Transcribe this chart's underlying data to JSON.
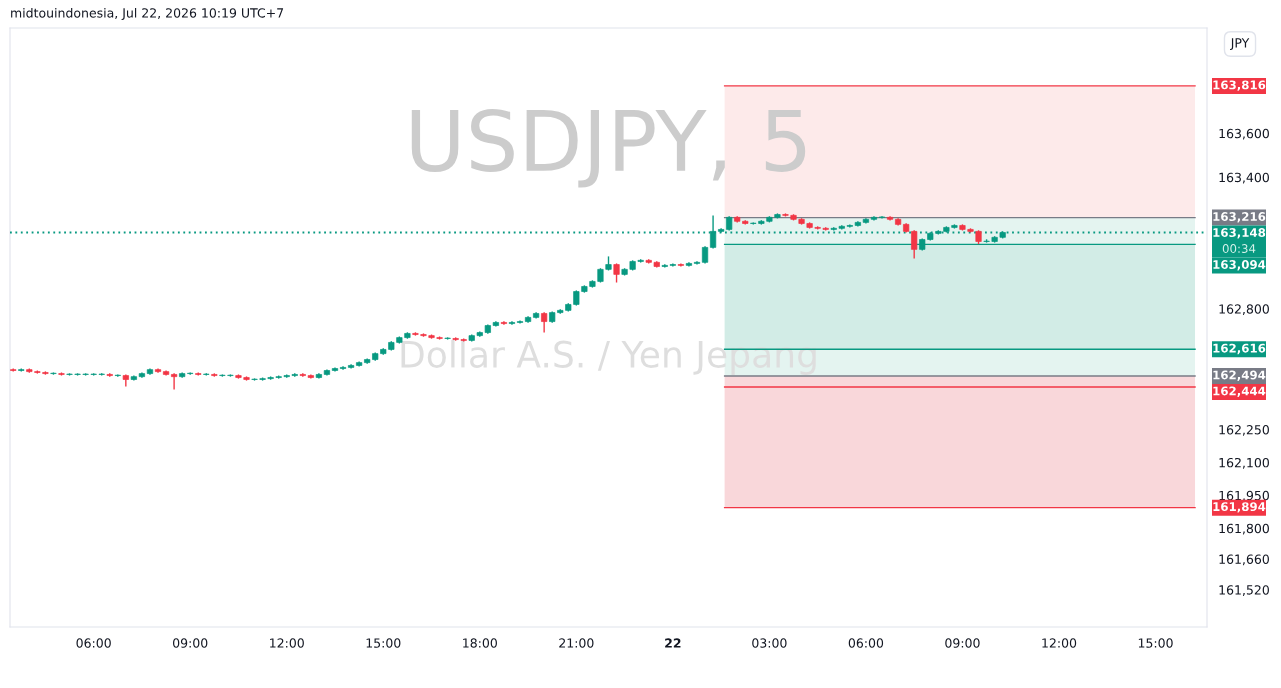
{
  "chart_data": {
    "type": "candlestick",
    "title": "USDJPY, 5",
    "subtitle": "Dollar A.S. / Yen Jepang",
    "annotations": [
      "midtouindonesia, Jul 22, 2026 10:19 UTC+7",
      "JPY",
      "00:34"
    ],
    "x": [
      "2026-07-21T03:30",
      "2026-07-21T03:45",
      "2026-07-21T04:00",
      "2026-07-21T04:15",
      "2026-07-21T04:30",
      "2026-07-21T04:45",
      "2026-07-21T05:00",
      "2026-07-21T05:15",
      "2026-07-21T05:30",
      "2026-07-21T05:45",
      "2026-07-21T06:00",
      "2026-07-21T06:15",
      "2026-07-21T06:30",
      "2026-07-21T06:45",
      "2026-07-21T07:00",
      "2026-07-21T07:15",
      "2026-07-21T07:30",
      "2026-07-21T07:45",
      "2026-07-21T08:00",
      "2026-07-21T08:15",
      "2026-07-21T08:30",
      "2026-07-21T08:45",
      "2026-07-21T09:00",
      "2026-07-21T09:15",
      "2026-07-21T09:30",
      "2026-07-21T09:45",
      "2026-07-21T10:00",
      "2026-07-21T10:15",
      "2026-07-21T10:30",
      "2026-07-21T10:45",
      "2026-07-21T11:00",
      "2026-07-21T11:15",
      "2026-07-21T11:30",
      "2026-07-21T11:45",
      "2026-07-21T12:00",
      "2026-07-21T12:15",
      "2026-07-21T12:30",
      "2026-07-21T12:45",
      "2026-07-21T13:00",
      "2026-07-21T13:15",
      "2026-07-21T13:30",
      "2026-07-21T13:45",
      "2026-07-21T14:00",
      "2026-07-21T14:15",
      "2026-07-21T14:30",
      "2026-07-21T14:45",
      "2026-07-21T15:00",
      "2026-07-21T15:15",
      "2026-07-21T15:30",
      "2026-07-21T15:45",
      "2026-07-21T16:00",
      "2026-07-21T16:15",
      "2026-07-21T16:30",
      "2026-07-21T16:45",
      "2026-07-21T17:00",
      "2026-07-21T17:15",
      "2026-07-21T17:30",
      "2026-07-21T17:45",
      "2026-07-21T18:00",
      "2026-07-21T18:15",
      "2026-07-21T18:30",
      "2026-07-21T18:45",
      "2026-07-21T19:00",
      "2026-07-21T19:15",
      "2026-07-21T19:30",
      "2026-07-21T19:45",
      "2026-07-21T20:00",
      "2026-07-21T20:15",
      "2026-07-21T20:30",
      "2026-07-21T20:45",
      "2026-07-21T21:00",
      "2026-07-21T21:15",
      "2026-07-21T21:30",
      "2026-07-21T21:45",
      "2026-07-21T22:00",
      "2026-07-21T22:15",
      "2026-07-21T22:30",
      "2026-07-21T22:45",
      "2026-07-21T23:00",
      "2026-07-21T23:15",
      "2026-07-21T23:30",
      "2026-07-21T23:45",
      "2026-07-22T00:00",
      "2026-07-22T00:15",
      "2026-07-22T00:30",
      "2026-07-22T00:45",
      "2026-07-22T01:00",
      "2026-07-22T01:15",
      "2026-07-22T01:30",
      "2026-07-22T01:45",
      "2026-07-22T02:00",
      "2026-07-22T02:15",
      "2026-07-22T02:30",
      "2026-07-22T02:45",
      "2026-07-22T03:00",
      "2026-07-22T03:15",
      "2026-07-22T03:30",
      "2026-07-22T03:45",
      "2026-07-22T04:00",
      "2026-07-22T04:15",
      "2026-07-22T04:30",
      "2026-07-22T04:45",
      "2026-07-22T05:00",
      "2026-07-22T05:15",
      "2026-07-22T05:30",
      "2026-07-22T05:45",
      "2026-07-22T06:00",
      "2026-07-22T06:15",
      "2026-07-22T06:30",
      "2026-07-22T06:45",
      "2026-07-22T07:00",
      "2026-07-22T07:15",
      "2026-07-22T07:30",
      "2026-07-22T07:45",
      "2026-07-22T08:00",
      "2026-07-22T08:15",
      "2026-07-22T08:30",
      "2026-07-22T08:45",
      "2026-07-22T09:00",
      "2026-07-22T09:15",
      "2026-07-22T09:30",
      "2026-07-22T09:45",
      "2026-07-22T10:00",
      "2026-07-22T10:15"
    ],
    "ohlc": [
      [
        162523,
        162528,
        162514,
        162519
      ],
      [
        162519,
        162528,
        162514,
        162523
      ],
      [
        162523,
        162528,
        162509,
        162514
      ],
      [
        162514,
        162519,
        162505,
        162510
      ],
      [
        162510,
        162515,
        162500,
        162505
      ],
      [
        162505,
        162510,
        162500,
        162505
      ],
      [
        162505,
        162510,
        162496,
        162501
      ],
      [
        162501,
        162506,
        162496,
        162501
      ],
      [
        162501,
        162506,
        162496,
        162501
      ],
      [
        162501,
        162506,
        162496,
        162501
      ],
      [
        162501,
        162506,
        162496,
        162501
      ],
      [
        162501,
        162506,
        162496,
        162501
      ],
      [
        162501,
        162506,
        162491,
        162496
      ],
      [
        162496,
        162501,
        162491,
        162496
      ],
      [
        162496,
        162501,
        162446,
        162478
      ],
      [
        162478,
        162496,
        162473,
        162491
      ],
      [
        162491,
        162510,
        162486,
        162505
      ],
      [
        162505,
        162528,
        162500,
        162523
      ],
      [
        162523,
        162528,
        162509,
        162514
      ],
      [
        162514,
        162519,
        162496,
        162501
      ],
      [
        162501,
        162506,
        162432,
        162491
      ],
      [
        162491,
        162510,
        162486,
        162505
      ],
      [
        162505,
        162510,
        162500,
        162505
      ],
      [
        162505,
        162510,
        162496,
        162501
      ],
      [
        162501,
        162506,
        162496,
        162501
      ],
      [
        162501,
        162506,
        162491,
        162496
      ],
      [
        162496,
        162501,
        162491,
        162496
      ],
      [
        162496,
        162501,
        162491,
        162496
      ],
      [
        162496,
        162501,
        162482,
        162487
      ],
      [
        162487,
        162492,
        162473,
        162478
      ],
      [
        162478,
        162483,
        162473,
        162478
      ],
      [
        162478,
        162487,
        162473,
        162482
      ],
      [
        162482,
        162492,
        162477,
        162487
      ],
      [
        162487,
        162496,
        162482,
        162491
      ],
      [
        162491,
        162501,
        162486,
        162496
      ],
      [
        162496,
        162506,
        162491,
        162501
      ],
      [
        162501,
        162506,
        162491,
        162496
      ],
      [
        162496,
        162501,
        162482,
        162487
      ],
      [
        162487,
        162506,
        162482,
        162501
      ],
      [
        162501,
        162524,
        162496,
        162519
      ],
      [
        162519,
        162533,
        162514,
        162528
      ],
      [
        162528,
        162538,
        162523,
        162533
      ],
      [
        162533,
        162547,
        162528,
        162542
      ],
      [
        162542,
        162560,
        162537,
        162555
      ],
      [
        162555,
        162574,
        162550,
        162569
      ],
      [
        162569,
        162601,
        162564,
        162596
      ],
      [
        162596,
        162620,
        162591,
        162615
      ],
      [
        162615,
        162652,
        162610,
        162647
      ],
      [
        162647,
        162674,
        162642,
        162669
      ],
      [
        162669,
        162693,
        162664,
        162688
      ],
      [
        162688,
        162693,
        162678,
        162683
      ],
      [
        162683,
        162688,
        162673,
        162678
      ],
      [
        162678,
        162683,
        162664,
        162669
      ],
      [
        162669,
        162674,
        162660,
        162665
      ],
      [
        162665,
        162670,
        162660,
        162665
      ],
      [
        162665,
        162670,
        162655,
        162660
      ],
      [
        162660,
        162665,
        162651,
        162656
      ],
      [
        162656,
        162683,
        162651,
        162678
      ],
      [
        162678,
        162697,
        162673,
        162692
      ],
      [
        162692,
        162729,
        162687,
        162724
      ],
      [
        162724,
        162743,
        162719,
        162738
      ],
      [
        162738,
        162743,
        162728,
        162733
      ],
      [
        162733,
        162743,
        162728,
        162738
      ],
      [
        162738,
        162747,
        162733,
        162742
      ],
      [
        162742,
        162766,
        162737,
        162761
      ],
      [
        162761,
        162784,
        162756,
        162779
      ],
      [
        162779,
        162784,
        162692,
        162742
      ],
      [
        162742,
        162788,
        162737,
        162783
      ],
      [
        162783,
        162798,
        162778,
        162793
      ],
      [
        162793,
        162825,
        162788,
        162820
      ],
      [
        162820,
        162884,
        162815,
        162879
      ],
      [
        162879,
        162907,
        162874,
        162902
      ],
      [
        162902,
        162930,
        162897,
        162925
      ],
      [
        162925,
        162985,
        162920,
        162980
      ],
      [
        162980,
        163039,
        162975,
        163002
      ],
      [
        163002,
        163007,
        162920,
        162957
      ],
      [
        162957,
        162985,
        162952,
        162980
      ],
      [
        162980,
        163021,
        162975,
        163016
      ],
      [
        163016,
        163026,
        163011,
        163021
      ],
      [
        163021,
        163026,
        163007,
        163012
      ],
      [
        163012,
        163017,
        162988,
        162993
      ],
      [
        162993,
        163003,
        162988,
        162998
      ],
      [
        162998,
        163007,
        162993,
        163002
      ],
      [
        163002,
        163007,
        162993,
        162998
      ],
      [
        162998,
        163012,
        162993,
        163007
      ],
      [
        163007,
        163017,
        163002,
        163012
      ],
      [
        163012,
        163085,
        163007,
        163080
      ],
      [
        163080,
        163226,
        163075,
        163153
      ],
      [
        163153,
        163167,
        163148,
        163162
      ],
      [
        163162,
        163222,
        163157,
        163217
      ],
      [
        163217,
        163222,
        163194,
        163199
      ],
      [
        163199,
        163204,
        163184,
        163189
      ],
      [
        163189,
        163194,
        163184,
        163189
      ],
      [
        163189,
        163204,
        163184,
        163199
      ],
      [
        163199,
        163222,
        163194,
        163217
      ],
      [
        163217,
        163235,
        163212,
        163230
      ],
      [
        163230,
        163235,
        163221,
        163226
      ],
      [
        163226,
        163231,
        163203,
        163208
      ],
      [
        163208,
        163213,
        163184,
        163189
      ],
      [
        163189,
        163194,
        163166,
        163171
      ],
      [
        163171,
        163176,
        163162,
        163167
      ],
      [
        163167,
        163172,
        163157,
        163162
      ],
      [
        163162,
        163172,
        163157,
        163167
      ],
      [
        163167,
        163181,
        163162,
        163176
      ],
      [
        163176,
        163185,
        163171,
        163180
      ],
      [
        163180,
        163199,
        163175,
        163194
      ],
      [
        163194,
        163213,
        163189,
        163208
      ],
      [
        163208,
        163222,
        163203,
        163217
      ],
      [
        163217,
        163222,
        163212,
        163217
      ],
      [
        163217,
        163222,
        163203,
        163208
      ],
      [
        163208,
        163213,
        163180,
        163185
      ],
      [
        163185,
        163190,
        163148,
        163153
      ],
      [
        163153,
        163158,
        163030,
        163071
      ],
      [
        163071,
        163121,
        163066,
        163116
      ],
      [
        163116,
        163149,
        163111,
        163144
      ],
      [
        163144,
        163158,
        163139,
        163153
      ],
      [
        163153,
        163176,
        163148,
        163171
      ],
      [
        163171,
        163185,
        163166,
        163180
      ],
      [
        163180,
        163185,
        163157,
        163162
      ],
      [
        163162,
        163167,
        163148,
        163153
      ],
      [
        163153,
        163158,
        163095,
        163107
      ],
      [
        163107,
        163117,
        163102,
        163107
      ],
      [
        163107,
        163131,
        163102,
        163126
      ],
      [
        163126,
        163153,
        163121,
        163148
      ]
    ],
    "colors": [
      "#f23645",
      "#089981",
      "#f23645",
      "#f23645",
      "#f23645",
      "#089981",
      "#f23645",
      "#089981",
      "#089981",
      "#089981",
      "#089981",
      "#089981",
      "#f23645",
      "#089981",
      "#f23645",
      "#089981",
      "#089981",
      "#089981",
      "#f23645",
      "#f23645",
      "#f23645",
      "#089981",
      "#089981",
      "#f23645",
      "#089981",
      "#f23645",
      "#089981",
      "#089981",
      "#f23645",
      "#f23645",
      "#089981",
      "#089981",
      "#089981",
      "#089981",
      "#089981",
      "#089981",
      "#f23645",
      "#f23645",
      "#089981",
      "#089981",
      "#089981",
      "#089981",
      "#089981",
      "#089981",
      "#089981",
      "#089981",
      "#089981",
      "#089981",
      "#089981",
      "#089981",
      "#f23645",
      "#f23645",
      "#f23645",
      "#f23645",
      "#089981",
      "#f23645",
      "#f23645",
      "#089981",
      "#089981",
      "#089981",
      "#089981",
      "#f23645",
      "#089981",
      "#089981",
      "#089981",
      "#089981",
      "#f23645",
      "#089981",
      "#089981",
      "#089981",
      "#089981",
      "#089981",
      "#089981",
      "#089981",
      "#089981",
      "#f23645",
      "#089981",
      "#089981",
      "#089981",
      "#f23645",
      "#f23645",
      "#089981",
      "#089981",
      "#f23645",
      "#089981",
      "#089981",
      "#089981",
      "#089981",
      "#089981",
      "#089981",
      "#f23645",
      "#f23645",
      "#089981",
      "#089981",
      "#089981",
      "#089981",
      "#f23645",
      "#f23645",
      "#f23645",
      "#f23645",
      "#f23645",
      "#f23645",
      "#089981",
      "#089981",
      "#089981",
      "#089981",
      "#089981",
      "#089981",
      "#089981",
      "#f23645",
      "#f23645",
      "#f23645",
      "#f23645",
      "#089981",
      "#089981",
      "#089981",
      "#089981",
      "#089981",
      "#f23645",
      "#f23645",
      "#f23645",
      "#089981",
      "#089981",
      "#089981"
    ],
    "xlim": [
      "2026-07-21T03:24",
      "2026-07-22T16:36"
    ],
    "xticks": [
      {
        "value": "2026-07-21T06:00",
        "label": "06:00"
      },
      {
        "value": "2026-07-21T09:00",
        "label": "09:00"
      },
      {
        "value": "2026-07-21T12:00",
        "label": "12:00"
      },
      {
        "value": "2026-07-21T15:00",
        "label": "15:00"
      },
      {
        "value": "2026-07-21T18:00",
        "label": "18:00"
      },
      {
        "value": "2026-07-21T21:00",
        "label": "21:00"
      },
      {
        "value": "2026-07-22",
        "label": "22"
      },
      {
        "value": "2026-07-22T03:00",
        "label": "03:00"
      },
      {
        "value": "2026-07-22T06:00",
        "label": "06:00"
      },
      {
        "value": "2026-07-22T09:00",
        "label": "09:00"
      },
      {
        "value": "2026-07-22T12:00",
        "label": "12:00"
      },
      {
        "value": "2026-07-22T15:00",
        "label": "15:00"
      }
    ],
    "ylim": [
      161350,
      164080
    ],
    "yticks": [
      {
        "value": 163600,
        "label": "163,600"
      },
      {
        "value": 163400,
        "label": "163,400"
      },
      {
        "value": 162800,
        "label": "162,800"
      },
      {
        "value": 162250,
        "label": "162,250"
      },
      {
        "value": 162100,
        "label": "162,100"
      },
      {
        "value": 161950,
        "label": "161,950"
      },
      {
        "value": 161800,
        "label": "161,800"
      },
      {
        "value": 161660,
        "label": "161,660"
      },
      {
        "value": 161520,
        "label": "161,520"
      }
    ],
    "bands": [
      {
        "axis": "y",
        "from": 163216,
        "to": 163816,
        "color": "#fdeaea"
      },
      {
        "axis": "y",
        "from": 163094,
        "to": 163216,
        "color": "#e4f4f0"
      },
      {
        "axis": "y",
        "from": 162616,
        "to": 163094,
        "color": "#d2ece6"
      },
      {
        "axis": "y",
        "from": 162494,
        "to": 162616,
        "color": "#e4f4f0"
      },
      {
        "axis": "y",
        "from": 161894,
        "to": 162494,
        "color": "#f9d7da"
      }
    ],
    "ref_lines": [
      {
        "axis": "y",
        "value": 163816,
        "label": "163,816",
        "color": "#f23645",
        "line_style": "solid"
      },
      {
        "axis": "y",
        "value": 163216,
        "label": "163,216",
        "color": "#787b86",
        "line_style": "solid"
      },
      {
        "axis": "y",
        "value": 163148,
        "label": "163,148",
        "color": "#089981",
        "line_style": "dotted"
      },
      {
        "axis": "y",
        "value": 163094,
        "label": "163,094",
        "color": "#089981",
        "line_style": "solid"
      },
      {
        "axis": "y",
        "value": 162616,
        "label": "162,616",
        "color": "#089981",
        "line_style": "solid"
      },
      {
        "axis": "y",
        "value": 162494,
        "label": "162,494",
        "color": "#787b86",
        "line_style": "solid"
      },
      {
        "axis": "y",
        "value": 162444,
        "label": "162,444",
        "color": "#f23645",
        "line_style": "solid"
      },
      {
        "axis": "y",
        "value": 161894,
        "label": "161,894",
        "color": "#f23645",
        "line_style": "solid"
      }
    ],
    "grid": false
  }
}
